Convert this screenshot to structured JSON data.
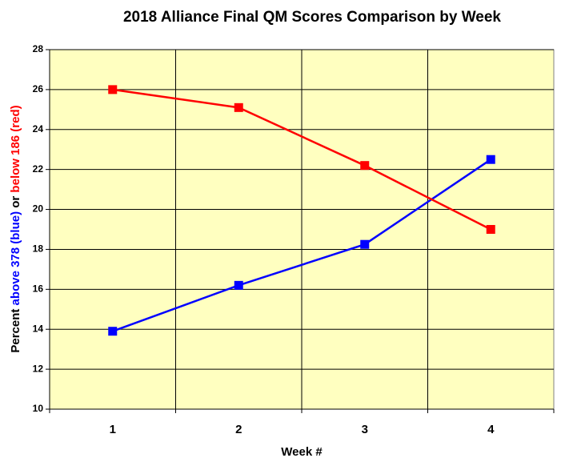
{
  "chart_data": {
    "type": "line",
    "title": "2018 Alliance Final QM Scores Comparison by Week",
    "xlabel": "Week #",
    "ylabel": [
      {
        "text": "Percent ",
        "color": "#000000"
      },
      {
        "text": "above 378 (blue)",
        "color": "#0000ff"
      },
      {
        "text": " or ",
        "color": "#000000"
      },
      {
        "text": "below 186 (red)",
        "color": "#ff0000"
      }
    ],
    "categories": [
      "1",
      "2",
      "3",
      "4"
    ],
    "series": [
      {
        "color": "#0000ff",
        "values": [
          13.9,
          16.2,
          18.25,
          22.5
        ]
      },
      {
        "color": "#ff0000",
        "values": [
          26.0,
          25.1,
          22.2,
          19.0
        ]
      }
    ],
    "ylim": [
      10,
      28
    ],
    "yticks": [
      10,
      12,
      14,
      16,
      18,
      20,
      22,
      24,
      26,
      28
    ],
    "grid": true,
    "plot_background": "#ffffc0"
  }
}
